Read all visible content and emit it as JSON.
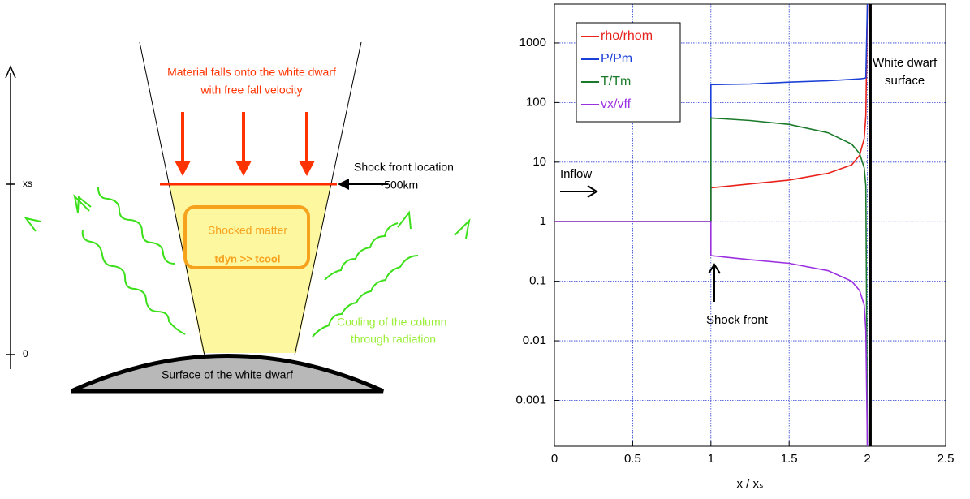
{
  "diagram": {
    "infall_text": [
      "Material falls onto the white dwarf",
      "with free fall velocity"
    ],
    "shock_text": [
      "Shock front location",
      "~500km"
    ],
    "box_title": "Shocked matter",
    "box_relation": "tdyn >> tcool",
    "cooling_text": [
      "Cooling of the column",
      "through radiation"
    ],
    "surface_text": "Surface of the white dwarf",
    "axis_labels": [
      "xs",
      "0"
    ]
  },
  "chart_data": {
    "type": "line",
    "x": [
      0,
      0.5,
      1,
      1,
      1.25,
      1.5,
      1.75,
      1.9,
      1.95,
      1.98,
      1.99,
      2.0
    ],
    "series": [
      {
        "name": "rho/rhom",
        "color": "#e8221b",
        "values": [
          1,
          1,
          1,
          3.7,
          4.3,
          5,
          6.5,
          9,
          13,
          25,
          60,
          4500
        ]
      },
      {
        "name": "P/Pm",
        "color": "#1a3fd6",
        "values": [
          1,
          1,
          1,
          200,
          205,
          220,
          232,
          245,
          250,
          255,
          260,
          4500
        ]
      },
      {
        "name": "T/Tm",
        "color": "#1a7a2a",
        "values": [
          1,
          1,
          1,
          55,
          50,
          43,
          31,
          20,
          14,
          8,
          4,
          0.00017
        ]
      },
      {
        "name": "vx/vff",
        "color": "#9b30e0",
        "values": [
          1,
          1,
          1,
          0.27,
          0.23,
          0.2,
          0.15,
          0.1,
          0.07,
          0.04,
          0.015,
          0.00017
        ]
      }
    ],
    "xlim": [
      0,
      2.5
    ],
    "xticks": [
      0,
      0.5,
      1,
      1.5,
      2,
      2.5
    ],
    "ylim": [
      0.00017,
      4500
    ],
    "yticks": [
      0.001,
      0.01,
      0.1,
      1,
      10,
      100,
      1000
    ],
    "log_y": true,
    "grid": true,
    "legend": "upper left",
    "xlabel": "x / xₛ",
    "surface_x": 2.02,
    "annotations": [
      "White dwarf",
      "surface",
      "Inflow",
      "Shock front"
    ]
  }
}
